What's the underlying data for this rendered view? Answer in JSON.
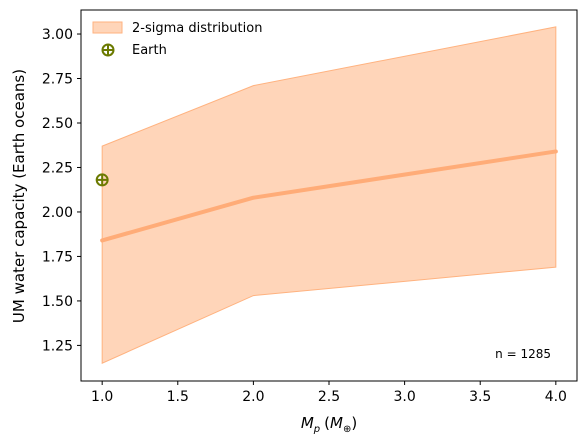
{
  "chart_data": {
    "type": "area",
    "xlabel_main": "M",
    "xlabel_sub": "p",
    "xlabel_unit_main": "M",
    "xlabel_unit_sub": "⊕",
    "ylabel": "UM water capacity (Earth oceans)",
    "xlim": [
      0.86,
      4.14
    ],
    "ylim": [
      1.05,
      3.135
    ],
    "xticks": [
      1.0,
      1.5,
      2.0,
      2.5,
      3.0,
      3.5,
      4.0
    ],
    "xtick_labels": [
      "1.0",
      "1.5",
      "2.0",
      "2.5",
      "3.0",
      "3.5",
      "4.0"
    ],
    "yticks": [
      1.25,
      1.5,
      1.75,
      2.0,
      2.25,
      2.5,
      2.75,
      3.0
    ],
    "ytick_labels": [
      "1.25",
      "1.50",
      "1.75",
      "2.00",
      "2.25",
      "2.50",
      "2.75",
      "3.00"
    ],
    "grid": false,
    "legend_placement": "top-left",
    "band": {
      "name": "2-sigma distribution",
      "x": [
        1,
        2,
        4
      ],
      "lower": [
        1.15,
        1.53,
        1.69
      ],
      "upper": [
        2.37,
        2.71,
        3.04
      ],
      "color": "#ffb27f"
    },
    "median": {
      "x": [
        1,
        2,
        4
      ],
      "y": [
        1.84,
        2.08,
        2.34
      ],
      "color": "#ffac78"
    },
    "earth": {
      "name": "Earth",
      "x": 1.0,
      "y": 2.18,
      "color": "#6b7a00"
    },
    "annotation": "n = 1285"
  }
}
